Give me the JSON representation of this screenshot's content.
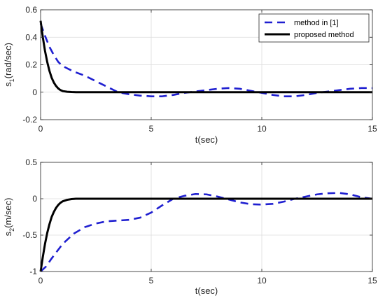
{
  "chart_data": [
    {
      "type": "line",
      "xlabel": "t(sec)",
      "ylabel_main": "s",
      "ylabel_sub": "1",
      "ylabel_unit": "(rad/sec)",
      "xlim": [
        0,
        15
      ],
      "ylim": [
        -0.2,
        0.6
      ],
      "xticks": [
        "0",
        "5",
        "10",
        "15"
      ],
      "yticks": [
        "-0.2",
        "0",
        "0.2",
        "0.4",
        "0.6"
      ],
      "grid": true,
      "legend_position": "top-right",
      "series": [
        {
          "name": "method in [1]",
          "color": "#1f1fd0",
          "style": "dashed",
          "x": [
            0,
            0.2,
            0.4,
            0.6,
            0.8,
            1.0,
            1.5,
            2.0,
            2.5,
            3.0,
            3.5,
            4.0,
            4.5,
            5.0,
            5.5,
            6.0,
            6.5,
            7.0,
            7.5,
            8.0,
            8.5,
            9.0,
            9.5,
            10.0,
            10.5,
            11.0,
            11.5,
            12.0,
            12.5,
            13.0,
            13.5,
            14.0,
            14.5,
            15.0
          ],
          "y": [
            0.5,
            0.41,
            0.33,
            0.27,
            0.22,
            0.19,
            0.15,
            0.12,
            0.08,
            0.04,
            0.0,
            -0.015,
            -0.025,
            -0.03,
            -0.03,
            -0.02,
            -0.005,
            0.005,
            0.015,
            0.025,
            0.03,
            0.025,
            0.01,
            -0.005,
            -0.02,
            -0.03,
            -0.03,
            -0.02,
            -0.005,
            0.005,
            0.015,
            0.025,
            0.03,
            0.03
          ]
        },
        {
          "name": "proposed method",
          "color": "#000000",
          "style": "solid",
          "x": [
            0,
            0.1,
            0.2,
            0.3,
            0.4,
            0.5,
            0.6,
            0.7,
            0.8,
            0.9,
            1.0,
            1.2,
            1.4,
            1.6,
            2.0,
            3.0,
            5.0,
            10.0,
            15.0
          ],
          "y": [
            0.52,
            0.4,
            0.3,
            0.22,
            0.155,
            0.105,
            0.07,
            0.045,
            0.027,
            0.015,
            0.008,
            0.003,
            0.001,
            0.0,
            0.0,
            0.0,
            0.0,
            0.0,
            0.0
          ]
        }
      ]
    },
    {
      "type": "line",
      "xlabel": "t(sec)",
      "ylabel_main": "s",
      "ylabel_sub": "2",
      "ylabel_unit": "(m/sec)",
      "xlim": [
        0,
        15
      ],
      "ylim": [
        -1,
        0.5
      ],
      "xticks": [
        "0",
        "5",
        "10",
        "15"
      ],
      "yticks": [
        "-1",
        "-0.5",
        "0",
        "0.5"
      ],
      "grid": true,
      "series": [
        {
          "name": "method in [1]",
          "color": "#1f1fd0",
          "style": "dashed",
          "x": [
            0,
            0.25,
            0.5,
            0.75,
            1.0,
            1.5,
            2.0,
            2.5,
            3.0,
            3.5,
            4.0,
            4.5,
            5.0,
            5.5,
            6.0,
            6.5,
            7.0,
            7.5,
            8.0,
            8.5,
            9.0,
            9.5,
            10.0,
            10.5,
            11.0,
            11.5,
            12.0,
            12.5,
            13.0,
            13.5,
            14.0,
            14.5,
            15.0
          ],
          "y": [
            -1.0,
            -0.93,
            -0.82,
            -0.72,
            -0.62,
            -0.48,
            -0.39,
            -0.34,
            -0.31,
            -0.3,
            -0.29,
            -0.26,
            -0.19,
            -0.09,
            0.0,
            0.04,
            0.065,
            0.06,
            0.03,
            -0.01,
            -0.05,
            -0.075,
            -0.08,
            -0.07,
            -0.04,
            0.0,
            0.03,
            0.06,
            0.075,
            0.08,
            0.06,
            0.02,
            0.0
          ]
        },
        {
          "name": "proposed method",
          "color": "#000000",
          "style": "solid",
          "x": [
            0,
            0.1,
            0.2,
            0.3,
            0.4,
            0.5,
            0.6,
            0.7,
            0.8,
            0.9,
            1.0,
            1.2,
            1.4,
            1.6,
            2.0,
            3.0,
            5.0,
            10.0,
            15.0
          ],
          "y": [
            -1.0,
            -0.8,
            -0.62,
            -0.47,
            -0.35,
            -0.25,
            -0.18,
            -0.125,
            -0.085,
            -0.055,
            -0.035,
            -0.015,
            -0.005,
            0.0,
            0.0,
            0.0,
            0.0,
            0.0,
            0.0
          ]
        }
      ]
    }
  ]
}
